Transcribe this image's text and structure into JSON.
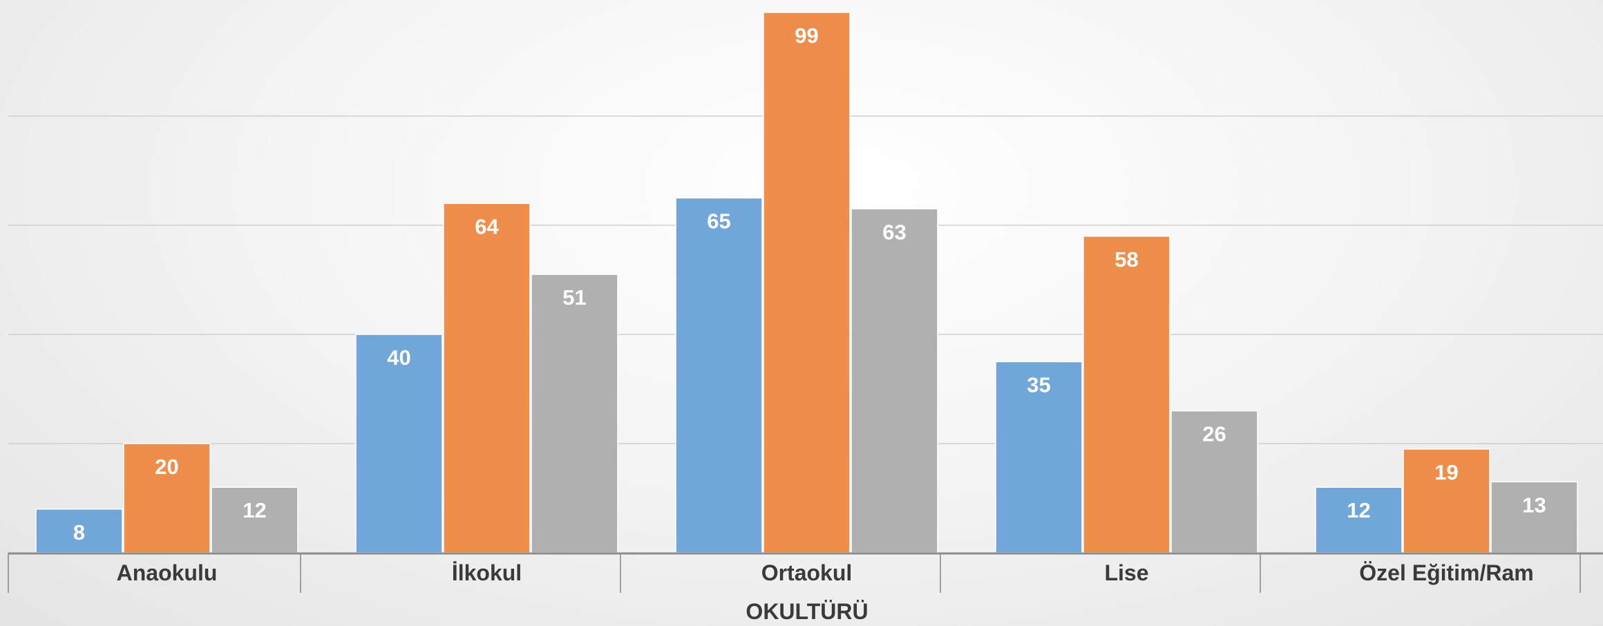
{
  "chart_data": {
    "type": "bar",
    "xlabel": "OKULTÜRÜ",
    "ylabel": "",
    "categories": [
      "Anaokulu",
      "İlkokul",
      "Ortaokul",
      "Lise",
      "Özel Eğitim/Ram"
    ],
    "series": [
      {
        "values": [
          8,
          40,
          65,
          35,
          12
        ],
        "color": "#70a6da"
      },
      {
        "values": [
          20,
          64,
          99,
          58,
          19
        ],
        "color": "#ef8d4b"
      },
      {
        "values": [
          12,
          51,
          63,
          26,
          13
        ],
        "color": "#b0b0b0"
      }
    ],
    "ylim": [
      0,
      100
    ],
    "gridlines": [
      20,
      40,
      60,
      80
    ],
    "grid": true,
    "legend": "none",
    "colors": {
      "grid": "#cfcfcf",
      "axis": "#8c8c8c",
      "label": "#ffffff",
      "text": "#3a3a3a"
    }
  }
}
